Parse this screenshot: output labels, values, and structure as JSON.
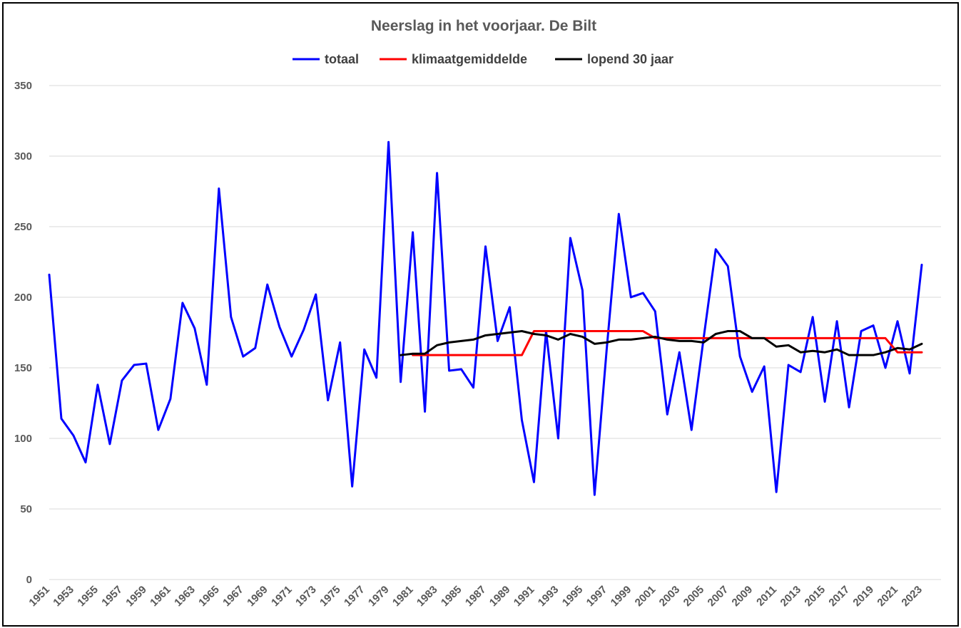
{
  "chart_data": {
    "type": "line",
    "title": "Neerslag in het voorjaar. De Bilt",
    "xlabel": "",
    "ylabel": "",
    "ylim": [
      0,
      350
    ],
    "yticks": [
      0,
      50,
      100,
      150,
      200,
      250,
      300,
      350
    ],
    "grid": true,
    "legend_position": "top",
    "x": [
      1951,
      1952,
      1953,
      1954,
      1955,
      1956,
      1957,
      1958,
      1959,
      1960,
      1961,
      1962,
      1963,
      1964,
      1965,
      1966,
      1967,
      1968,
      1969,
      1970,
      1971,
      1972,
      1973,
      1974,
      1975,
      1976,
      1977,
      1978,
      1979,
      1980,
      1981,
      1982,
      1983,
      1984,
      1985,
      1986,
      1987,
      1988,
      1989,
      1990,
      1991,
      1992,
      1993,
      1994,
      1995,
      1996,
      1997,
      1998,
      1999,
      2000,
      2001,
      2002,
      2003,
      2004,
      2005,
      2006,
      2007,
      2008,
      2009,
      2010,
      2011,
      2012,
      2013,
      2014,
      2015,
      2016,
      2017,
      2018,
      2019,
      2020,
      2021,
      2022,
      2023
    ],
    "xtick_labels": [
      "1951",
      "1953",
      "1955",
      "1957",
      "1959",
      "1961",
      "1963",
      "1965",
      "1967",
      "1969",
      "1971",
      "1973",
      "1975",
      "1977",
      "1979",
      "1981",
      "1983",
      "1985",
      "1987",
      "1989",
      "1991",
      "1993",
      "1995",
      "1997",
      "1999",
      "2001",
      "2003",
      "2005",
      "2007",
      "2009",
      "2011",
      "2013",
      "2015",
      "2017",
      "2019",
      "2021",
      "2023"
    ],
    "series": [
      {
        "name": "totaal",
        "color": "#0000ff",
        "values": [
          216,
          114,
          102,
          83,
          138,
          96,
          141,
          152,
          153,
          106,
          128,
          196,
          178,
          138,
          277,
          186,
          158,
          164,
          209,
          179,
          158,
          177,
          202,
          127,
          168,
          66,
          163,
          143,
          310,
          140,
          246,
          119,
          288,
          148,
          149,
          136,
          236,
          169,
          193,
          113,
          69,
          176,
          100,
          242,
          205,
          60,
          163,
          259,
          200,
          203,
          190,
          117,
          161,
          106,
          171,
          234,
          222,
          158,
          133,
          151,
          62,
          152,
          147,
          186,
          126,
          183,
          122,
          176,
          180,
          150,
          183,
          146,
          223
        ]
      },
      {
        "name": "klimaatgemiddelde",
        "color": "#ff0000",
        "values": [
          null,
          null,
          null,
          null,
          null,
          null,
          null,
          null,
          null,
          null,
          null,
          null,
          null,
          null,
          null,
          null,
          null,
          null,
          null,
          null,
          null,
          null,
          null,
          null,
          null,
          null,
          null,
          null,
          null,
          null,
          159,
          159,
          159,
          159,
          159,
          159,
          159,
          159,
          159,
          159,
          176,
          176,
          176,
          176,
          176,
          176,
          176,
          176,
          176,
          176,
          171,
          171,
          171,
          171,
          171,
          171,
          171,
          171,
          171,
          171,
          171,
          171,
          171,
          171,
          171,
          171,
          171,
          171,
          171,
          171,
          161,
          161,
          161
        ]
      },
      {
        "name": "lopend 30 jaar",
        "color": "#000000",
        "values": [
          null,
          null,
          null,
          null,
          null,
          null,
          null,
          null,
          null,
          null,
          null,
          null,
          null,
          null,
          null,
          null,
          null,
          null,
          null,
          null,
          null,
          null,
          null,
          null,
          null,
          null,
          null,
          null,
          null,
          159,
          160,
          160,
          166,
          168,
          169,
          170,
          173,
          174,
          175,
          176,
          174,
          173,
          170,
          174,
          172,
          167,
          168,
          170,
          170,
          171,
          172,
          170,
          169,
          169,
          168,
          174,
          176,
          176,
          171,
          171,
          165,
          166,
          161,
          162,
          161,
          163,
          159,
          159,
          159,
          161,
          164,
          163,
          167
        ]
      }
    ]
  }
}
